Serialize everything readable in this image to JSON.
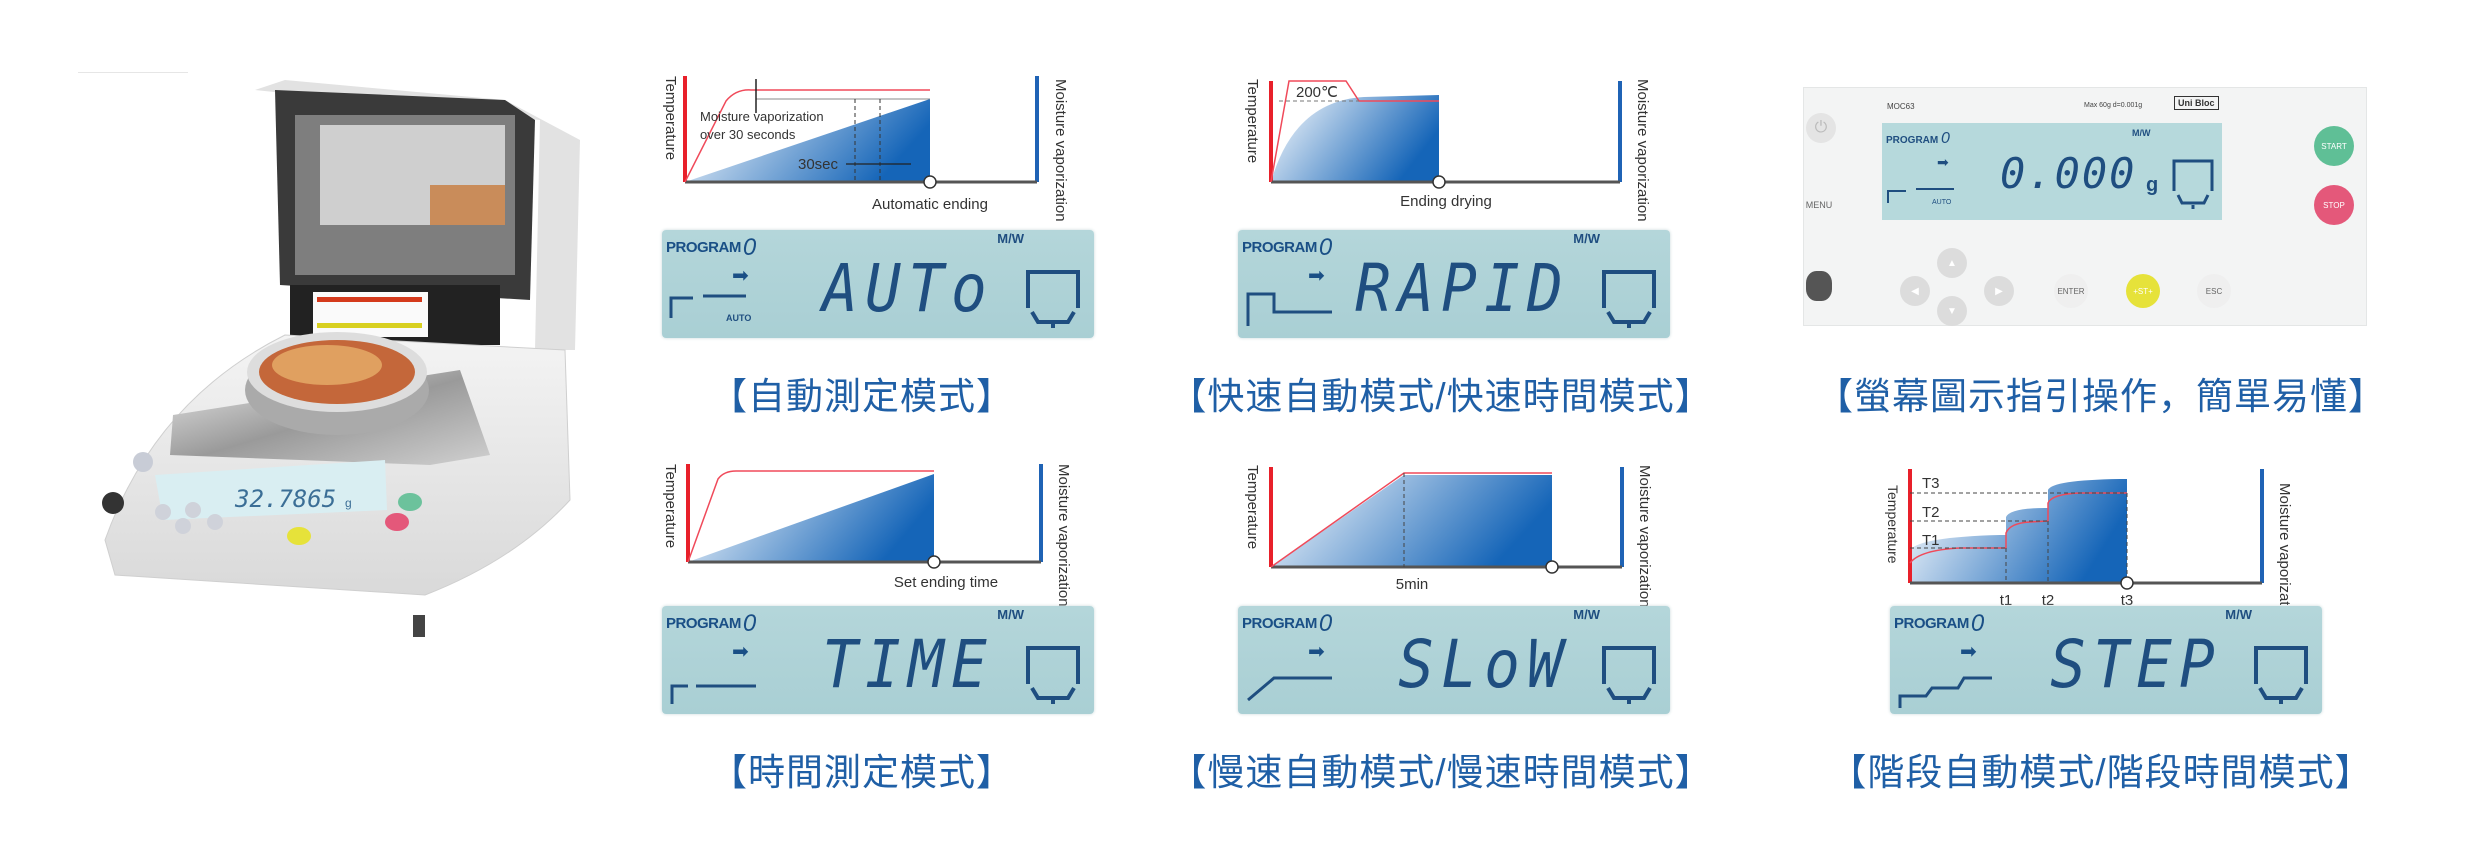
{
  "product_photo": {
    "display_value": "32.7865",
    "display_unit": "g"
  },
  "modes": [
    {
      "id": "auto",
      "chart": {
        "y_left_label": "Temperature",
        "y_right_label": "Moisture vaporization",
        "annotation_1": "Moisture vaporization",
        "annotation_2": "over 30 seconds",
        "interval_label": "30sec",
        "end_label": "Automatic ending"
      },
      "lcd": {
        "program_label": "PROGRAM",
        "program_number": "0",
        "word": "AUTo",
        "unit": "M/W",
        "profile_label": "AUTO"
      },
      "caption": "【自動測定模式】"
    },
    {
      "id": "rapid",
      "chart": {
        "y_left_label": "Temperature",
        "y_right_label": "Moisture vaporization",
        "temp_label": "200℃",
        "end_label": "Ending drying"
      },
      "lcd": {
        "program_label": "PROGRAM",
        "program_number": "0",
        "word": "RAPID",
        "unit": "M/W"
      },
      "caption": "【快速自動模式/快速時間模式】"
    },
    {
      "id": "time",
      "chart": {
        "y_left_label": "Temperature",
        "y_right_label": "Moisture vaporization",
        "end_label": "Set ending time"
      },
      "lcd": {
        "program_label": "PROGRAM",
        "program_number": "0",
        "word": "TIME",
        "unit": "M/W"
      },
      "caption": "【時間測定模式】"
    },
    {
      "id": "slow",
      "chart": {
        "y_left_label": "Temperature",
        "y_right_label": "Moisture vaporization",
        "ramp_label": "5min"
      },
      "lcd": {
        "program_label": "PROGRAM",
        "program_number": "0",
        "word": "SLoW",
        "unit": "M/W"
      },
      "caption": "【慢速自動模式/慢速時間模式】"
    },
    {
      "id": "step",
      "chart": {
        "y_left_label": "Temperature",
        "y_right_label": "Moisture vaporization",
        "temp_levels": [
          "T1",
          "T2",
          "T3"
        ],
        "time_marks": [
          "t1",
          "t2",
          "t3"
        ]
      },
      "lcd": {
        "program_label": "PROGRAM",
        "program_number": "0",
        "word": "STEP",
        "unit": "M/W"
      },
      "caption": "【階段自動模式/階段時間模式】"
    }
  ],
  "control_panel": {
    "model": "MOC63",
    "spec": "Max 60g  d=0.001g",
    "brand": "Uni Bloc",
    "program_label": "PROGRAM",
    "program_number": "0",
    "profile_label": "AUTO",
    "reading": "0.000",
    "unit": "g",
    "mw_unit": "M/W",
    "buttons": {
      "power": "⏻",
      "menu": "MENU",
      "enter": "ENTER",
      "st": "+ST+",
      "esc": "ESC",
      "start": "START",
      "stop": "STOP"
    },
    "caption": "【螢幕圖示指引操作，簡單易懂】"
  },
  "colors": {
    "temperature": "#e8202a",
    "moisture": "#1f63b5",
    "caption": "#1f5fa6",
    "lcd_bg": "#b0d3d8",
    "start": "#5fbf96",
    "stop": "#e4587a",
    "st": "#e6e23a"
  }
}
